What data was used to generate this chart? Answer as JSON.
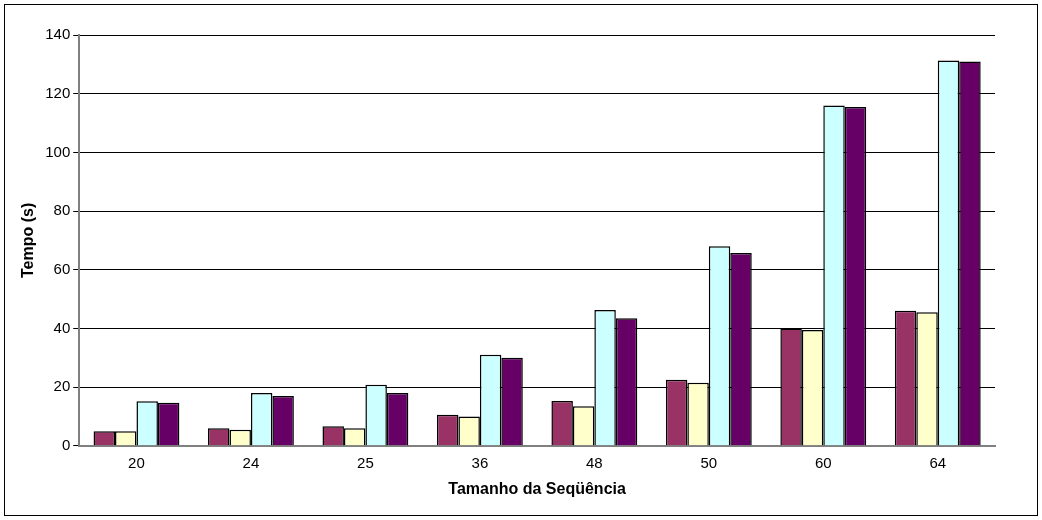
{
  "chart_data": {
    "type": "bar",
    "xlabel": "Tamanho da Seqüência",
    "ylabel": "Tempo (s)",
    "categories": [
      "20",
      "24",
      "25",
      "36",
      "48",
      "50",
      "60",
      "64"
    ],
    "series": [
      {
        "color": "#993366",
        "values": [
          5,
          6,
          6.7,
          10.6,
          15.3,
          22.5,
          40,
          46
        ]
      },
      {
        "color": "#ffffcc",
        "values": [
          5,
          5.5,
          6,
          10,
          13.5,
          21.5,
          39.5,
          45.5
        ]
      },
      {
        "color": "#ccffff",
        "values": [
          15.2,
          18,
          20.8,
          31,
          46.3,
          68,
          116,
          131.3
        ]
      },
      {
        "color": "#660066",
        "values": [
          14.7,
          17,
          18,
          30,
          43.5,
          65.7,
          115.5,
          131
        ]
      }
    ],
    "ylim": [
      0,
      140
    ],
    "yticks": [
      0,
      20,
      40,
      60,
      80,
      100,
      120,
      140
    ],
    "grid": "y",
    "legend": false
  }
}
